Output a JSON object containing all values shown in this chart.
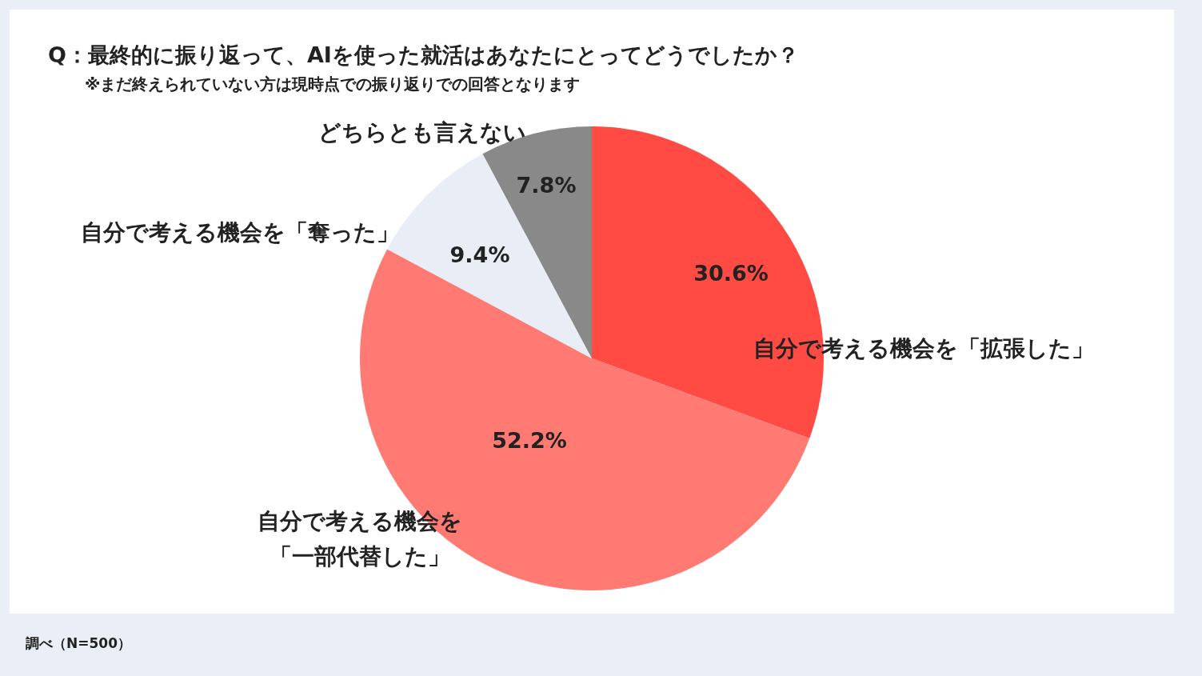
{
  "chart_data": {
    "type": "pie",
    "title": "Q：最終的に振り返って、AIを使った就活はあなたにとってどうでしたか？",
    "subtitle": "※まだ終えられていない方は現時点での振り返りでの回答となります",
    "categories": [
      "自分で考える機会を「拡張した」",
      "自分で考える機会を「一部代替した」",
      "自分で考える機会を「奪った」",
      "どちらとも言えない"
    ],
    "values": [
      30.6,
      52.2,
      9.4,
      7.8
    ],
    "colors": [
      "#ff4b44",
      "#ff7a72",
      "#e8edf6",
      "#898989"
    ],
    "value_labels": [
      "30.6%",
      "52.2%",
      "9.4%",
      "7.8%"
    ],
    "annotations": [
      "調べ（N=500）"
    ],
    "legend": false
  }
}
